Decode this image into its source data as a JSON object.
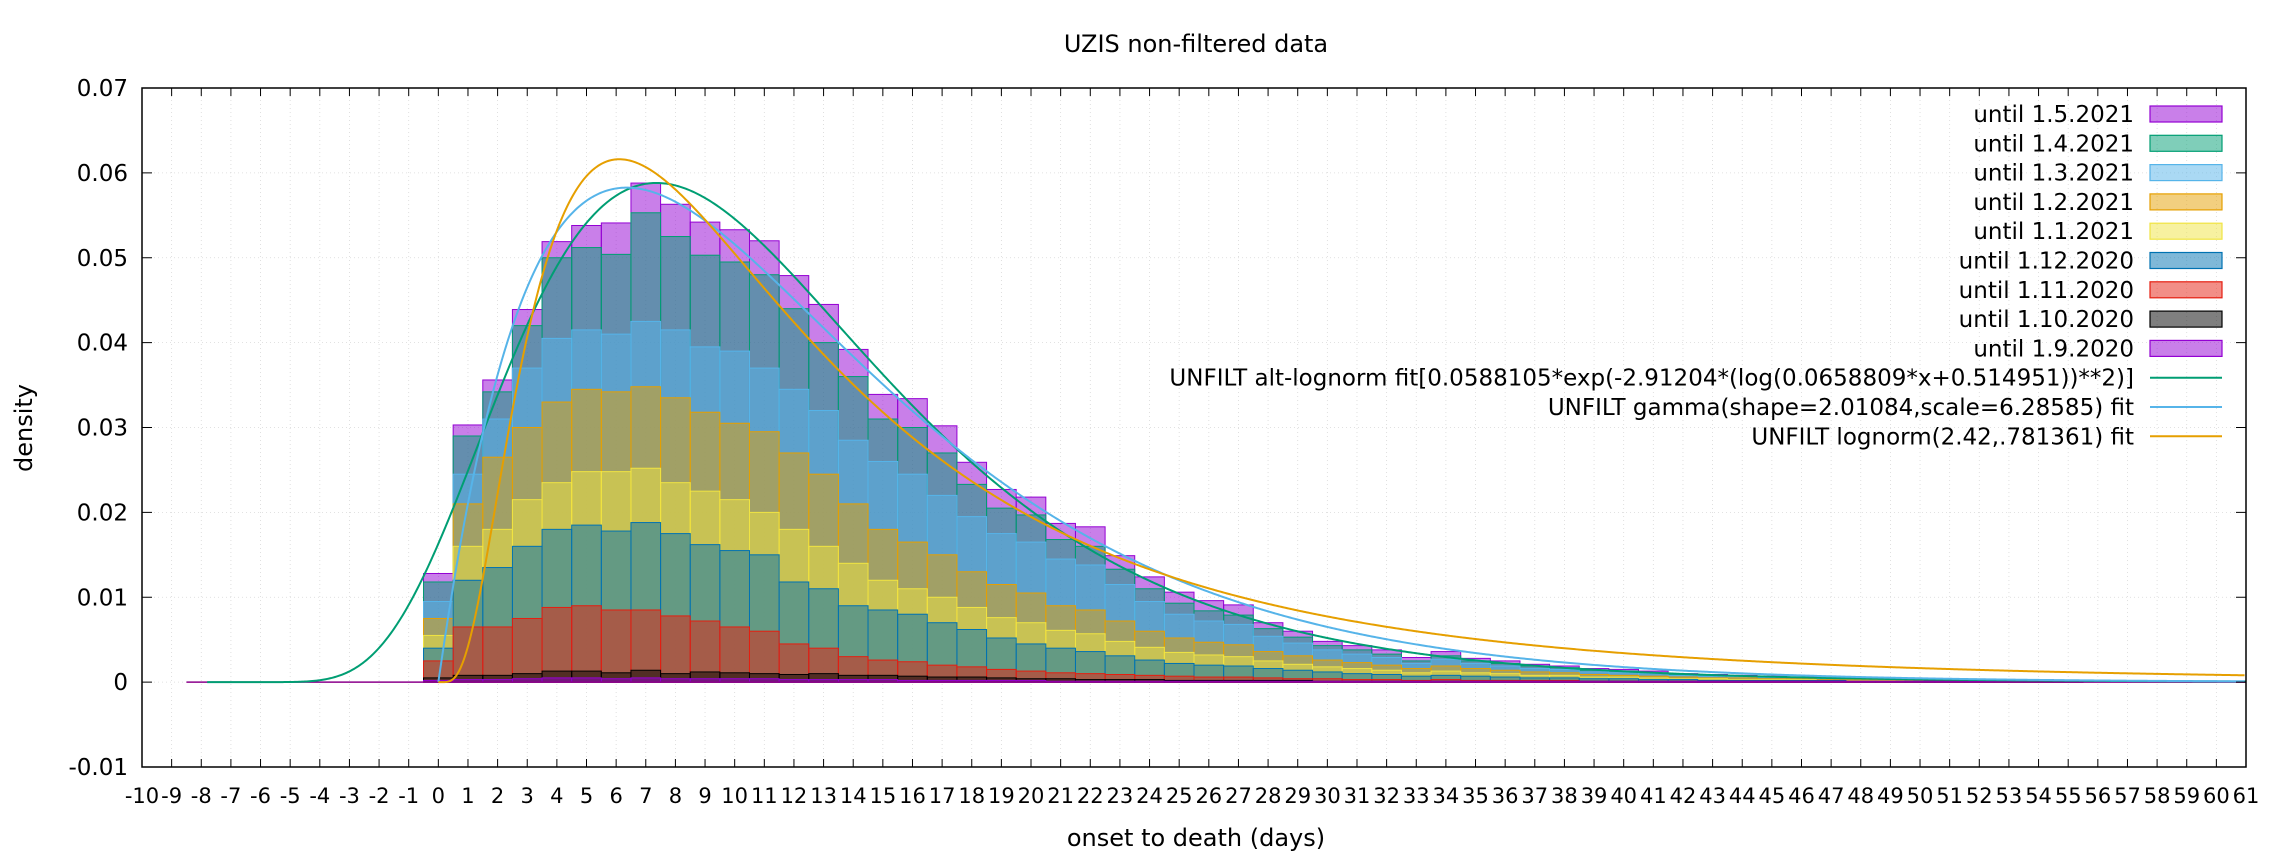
{
  "chart_data": {
    "type": "bar",
    "title": "UZIS non-filtered data",
    "xlabel": "onset to death (days)",
    "ylabel": "density",
    "xlim": [
      -10,
      61
    ],
    "ylim": [
      -0.01,
      0.07
    ],
    "yticks": [
      "0.07",
      "0.06",
      "0.05",
      "0.04",
      "0.03",
      "0.02",
      "0.01",
      "0",
      "-0.01"
    ],
    "ytick_values": [
      0.07,
      0.06,
      0.05,
      0.04,
      0.03,
      0.02,
      0.01,
      0,
      -0.01
    ],
    "xticks": [
      "-10",
      "-9",
      "-8",
      "-7",
      "-6",
      "-5",
      "-4",
      "-3",
      "-2",
      "-1",
      "0",
      "1",
      "2",
      "3",
      "4",
      "5",
      "6",
      "7",
      "8",
      "9",
      "10",
      "11",
      "12",
      "13",
      "14",
      "15",
      "16",
      "17",
      "18",
      "19",
      "20",
      "21",
      "22",
      "23",
      "24",
      "25",
      "26",
      "27",
      "28",
      "29",
      "30",
      "31",
      "32",
      "33",
      "34",
      "35",
      "36",
      "37",
      "38",
      "39",
      "40",
      "41",
      "42",
      "43",
      "44",
      "45",
      "46",
      "47",
      "48",
      "49",
      "50",
      "51",
      "52",
      "53",
      "54",
      "55",
      "56",
      "57",
      "58",
      "59",
      "60",
      "61"
    ],
    "grid": true,
    "legend_position": "top-right",
    "bar_x_start": 0,
    "series": [
      {
        "name": "until 1.5.2021",
        "color": "#9400d3",
        "values": [
          0.0128,
          0.0303,
          0.0356,
          0.0439,
          0.0519,
          0.0538,
          0.0541,
          0.0588,
          0.0563,
          0.0542,
          0.0533,
          0.052,
          0.0479,
          0.0445,
          0.0392,
          0.0339,
          0.0334,
          0.0302,
          0.0259,
          0.0227,
          0.0218,
          0.0187,
          0.0183,
          0.0149,
          0.0124,
          0.0106,
          0.0096,
          0.0091,
          0.007,
          0.006,
          0.0048,
          0.0043,
          0.0038,
          0.0029,
          0.0036,
          0.0028,
          0.0025,
          0.0021,
          0.0019,
          0.0016,
          0.0015,
          0.0013,
          0.001,
          0.0009,
          0.0008,
          0.0007,
          0.0006,
          0.0006,
          0.0005,
          0.0005,
          0.0004,
          0.0004,
          0.0003,
          0.0003,
          0.0003,
          0.0002
        ]
      },
      {
        "name": "until 1.4.2021",
        "color": "#009e73",
        "values": [
          0.0118,
          0.029,
          0.0342,
          0.042,
          0.05,
          0.0512,
          0.0504,
          0.0553,
          0.0525,
          0.0503,
          0.0495,
          0.048,
          0.044,
          0.04,
          0.036,
          0.031,
          0.03,
          0.027,
          0.0233,
          0.0205,
          0.0197,
          0.0168,
          0.016,
          0.0133,
          0.011,
          0.0093,
          0.0084,
          0.0079,
          0.0063,
          0.0053,
          0.0043,
          0.0038,
          0.0033,
          0.0025,
          0.0031,
          0.0025,
          0.0022,
          0.0019,
          0.0017,
          0.0014,
          0.0013,
          0.0011,
          0.0009,
          0.0008,
          0.0007,
          0.0006,
          0.0005,
          0.0005,
          0.0004,
          0.0004,
          0.0004,
          0.0003,
          0.0003,
          0.0003,
          0.0002,
          0.0002
        ]
      },
      {
        "name": "until 1.3.2021",
        "color": "#56b4e9",
        "values": [
          0.0095,
          0.0245,
          0.031,
          0.037,
          0.0405,
          0.0415,
          0.041,
          0.0425,
          0.0415,
          0.0395,
          0.039,
          0.037,
          0.0345,
          0.032,
          0.0285,
          0.026,
          0.0245,
          0.022,
          0.0195,
          0.0175,
          0.0165,
          0.0145,
          0.0138,
          0.0115,
          0.0095,
          0.008,
          0.0072,
          0.0068,
          0.0054,
          0.0046,
          0.0038,
          0.0033,
          0.0029,
          0.0022,
          0.0027,
          0.0022,
          0.0019,
          0.0016,
          0.0015,
          0.0012,
          0.0011,
          0.001,
          0.0008,
          0.0007,
          0.0006,
          0.0005,
          0.0005,
          0.0004,
          0.0004,
          0.0003,
          0.0003,
          0.0003,
          0.0002,
          0.0002,
          0.0002,
          0.0002
        ]
      },
      {
        "name": "until 1.2.2021",
        "color": "#e69f00",
        "values": [
          0.0075,
          0.021,
          0.0265,
          0.03,
          0.033,
          0.0345,
          0.0342,
          0.0348,
          0.0335,
          0.0318,
          0.0305,
          0.0295,
          0.027,
          0.0245,
          0.021,
          0.018,
          0.0165,
          0.015,
          0.013,
          0.0115,
          0.0105,
          0.009,
          0.0085,
          0.0072,
          0.006,
          0.0052,
          0.0047,
          0.0044,
          0.0036,
          0.0031,
          0.0026,
          0.0023,
          0.002,
          0.0016,
          0.0019,
          0.0016,
          0.0014,
          0.0012,
          0.0011,
          0.0009,
          0.0008,
          0.0007,
          0.0006,
          0.0005,
          0.0005,
          0.0004,
          0.0004,
          0.0003,
          0.0003,
          0.0003,
          0.0002,
          0.0002,
          0.0002,
          0.0002,
          0.0001,
          0.0001
        ]
      },
      {
        "name": "until 1.1.2021",
        "color": "#f0e442",
        "values": [
          0.0055,
          0.016,
          0.018,
          0.0215,
          0.0235,
          0.0248,
          0.0248,
          0.0252,
          0.0235,
          0.0225,
          0.0215,
          0.02,
          0.018,
          0.016,
          0.014,
          0.012,
          0.011,
          0.01,
          0.0088,
          0.0076,
          0.007,
          0.0061,
          0.0057,
          0.0048,
          0.0041,
          0.0035,
          0.0032,
          0.003,
          0.0025,
          0.0021,
          0.0018,
          0.0016,
          0.0014,
          0.0011,
          0.0013,
          0.0011,
          0.001,
          0.0008,
          0.0008,
          0.0006,
          0.0006,
          0.0005,
          0.0004,
          0.0004,
          0.0003,
          0.0003,
          0.0003,
          0.0002,
          0.0002,
          0.0002,
          0.0002,
          0.0001,
          0.0001,
          0.0001,
          0.0001,
          0.0001
        ]
      },
      {
        "name": "until 1.12.2020",
        "color": "#0072b2",
        "values": [
          0.004,
          0.012,
          0.0135,
          0.016,
          0.018,
          0.0185,
          0.0178,
          0.0188,
          0.0175,
          0.0162,
          0.0155,
          0.015,
          0.0118,
          0.011,
          0.009,
          0.0085,
          0.008,
          0.007,
          0.0062,
          0.0052,
          0.0045,
          0.004,
          0.0036,
          0.0031,
          0.0026,
          0.0022,
          0.002,
          0.0019,
          0.0016,
          0.0014,
          0.0012,
          0.001,
          0.0009,
          0.0007,
          0.0008,
          0.0007,
          0.0006,
          0.0005,
          0.0005,
          0.0004,
          0.0004,
          0.0003,
          0.0003,
          0.0002,
          0.0002,
          0.0002,
          0.0002,
          0.0002,
          0.0001,
          0.0001,
          0.0001,
          0.0001,
          0.0001,
          0.0001,
          0.0001,
          0.0001
        ]
      },
      {
        "name": "until 1.11.2020",
        "color": "#e51e10",
        "values": [
          0.0025,
          0.0065,
          0.0065,
          0.0075,
          0.0088,
          0.009,
          0.0085,
          0.0085,
          0.0078,
          0.0072,
          0.0065,
          0.006,
          0.0045,
          0.004,
          0.003,
          0.0026,
          0.0024,
          0.002,
          0.0018,
          0.0015,
          0.0013,
          0.0011,
          0.001,
          0.0009,
          0.0008,
          0.0007,
          0.0006,
          0.0006,
          0.0005,
          0.0004,
          0.0004,
          0.0003,
          0.0003,
          0.0002,
          0.0003,
          0.0002,
          0.0002,
          0.0002,
          0.0002,
          0.0001,
          0.0001,
          0.0001,
          0.0001,
          0.0001,
          0.0001,
          0.0001,
          0.0001,
          0.0001,
          0.0001,
          0.0001,
          0.0001,
          0.0001,
          0.0001,
          0.0001,
          0.0001,
          0.0001
        ]
      },
      {
        "name": "until 1.10.2020",
        "color": "#000000",
        "values": [
          0.0005,
          0.0008,
          0.0008,
          0.001,
          0.0013,
          0.0013,
          0.0011,
          0.0014,
          0.001,
          0.0012,
          0.0011,
          0.001,
          0.0009,
          0.001,
          0.0008,
          0.0008,
          0.0007,
          0.0006,
          0.0006,
          0.0005,
          0.0004,
          0.0004,
          0.0003,
          0.0003,
          0.0003,
          0.0002,
          0.0002,
          0.0002,
          0.0002,
          0.0002,
          0.0001,
          0.0001,
          0.0001,
          0.0001,
          0.0001,
          0.0001,
          0.0001,
          0.0001,
          0.0001,
          0.0001,
          0.0001,
          0.0001,
          0.0001,
          0.0001,
          0.0001,
          0.0001,
          0.0001,
          0.0001,
          0.0001,
          0.0001,
          0.0001,
          0.0001,
          0.0001,
          0.0001,
          0.0001,
          0.0001
        ]
      },
      {
        "name": "until 1.9.2020",
        "color": "#9400d3",
        "values": [
          0.0002,
          0.0003,
          0.0003,
          0.0004,
          0.0005,
          0.0005,
          0.0004,
          0.0005,
          0.0004,
          0.0004,
          0.0004,
          0.0004,
          0.0003,
          0.0003,
          0.0003,
          0.0003,
          0.0002,
          0.0002,
          0.0002,
          0.0002,
          0.0002,
          0.0001,
          0.0001,
          0.0001,
          0.0001,
          0.0001,
          0.0001,
          0.0001,
          0.0001,
          0.0001,
          0.0001,
          0.0001,
          0.0001,
          0.0001,
          0.0001,
          0.0001,
          0.0001,
          0.0001,
          0.0001,
          0.0001,
          0.0001,
          0.0001,
          0.0001,
          0.0001,
          0.0001,
          0.0001,
          0.0001,
          0.0001,
          0.0001,
          0.0001,
          0.0001,
          0.0001,
          0.0001,
          0.0001,
          0.0001,
          0.0001
        ]
      }
    ],
    "fits": [
      {
        "name": "UNFILT alt-lognorm fit[0.0588105*exp(-2.91204*(log(0.0658809*x+0.514951))**2)]",
        "color": "#009e73",
        "kind": "altlognorm",
        "a": 0.0588105,
        "b": 2.91204,
        "c": 0.0658809,
        "d": 0.514951
      },
      {
        "name": "UNFILT gamma(shape=2.01084,scale=6.28585) fit",
        "color": "#56b4e9",
        "kind": "gamma",
        "shape": 2.01084,
        "scale": 6.28585
      },
      {
        "name": "UNFILT lognorm(2.42,.781361) fit",
        "color": "#e69f00",
        "kind": "lognorm",
        "mu": 2.42,
        "sigma": 0.781361
      }
    ]
  }
}
